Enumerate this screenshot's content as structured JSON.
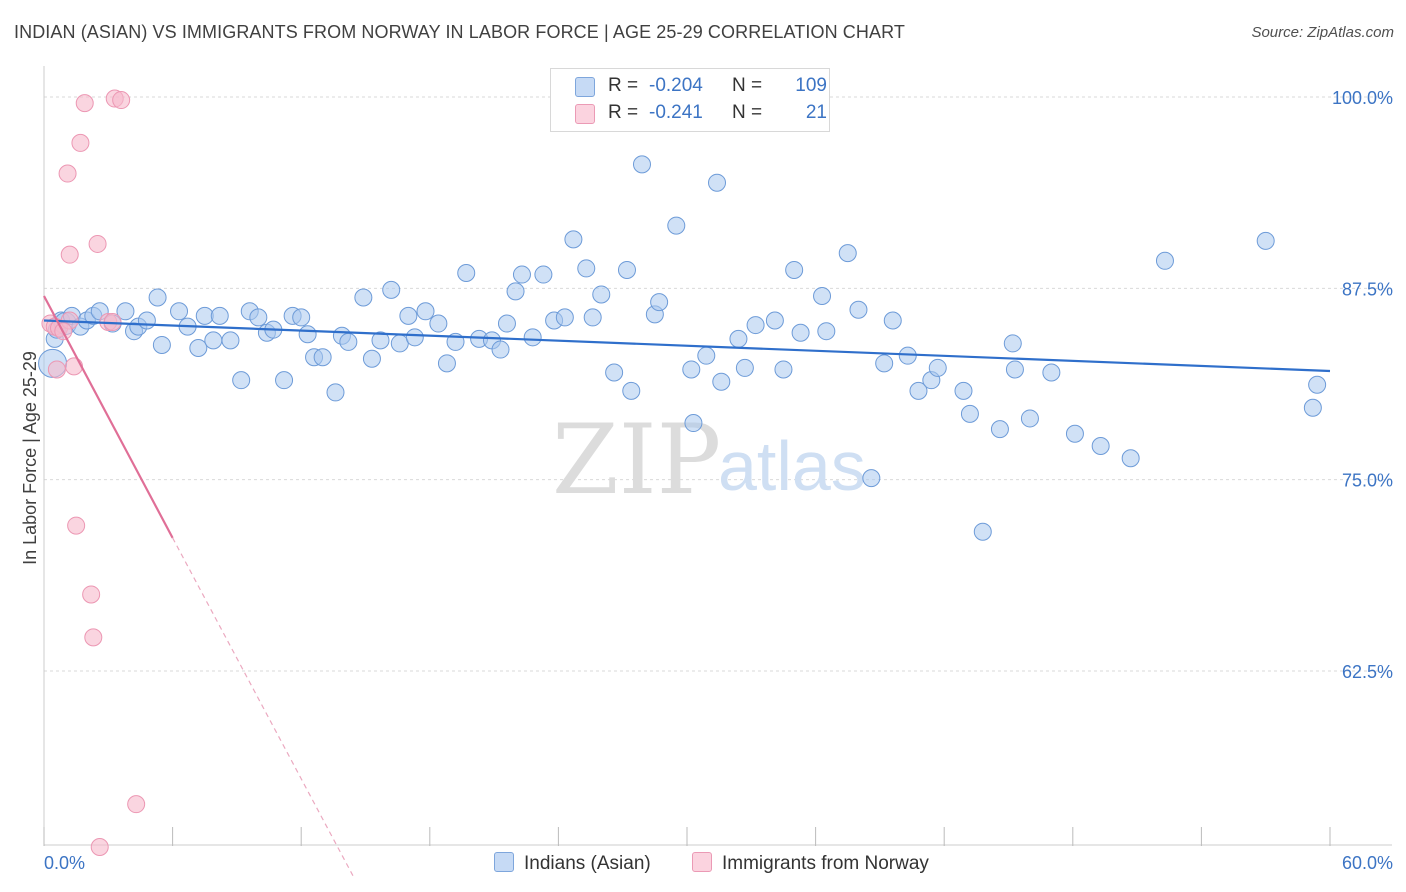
{
  "title": "INDIAN (ASIAN) VS IMMIGRANTS FROM NORWAY IN LABOR FORCE | AGE 25-29 CORRELATION CHART",
  "source": "Source: ZipAtlas.com",
  "watermark": {
    "zip": "ZIP",
    "atlas": "atlas"
  },
  "colors": {
    "blue": "#3c74c4",
    "blue_fill": "#a9c8ef",
    "blue_line": "#2f6fcb",
    "pink_fill": "#f7b9cc",
    "pink_line": "#e06f97",
    "grid": "#d9d9d9"
  },
  "legend": {
    "series": [
      {
        "r_label": "R =",
        "r_value": "-0.204",
        "n_label": "N =",
        "n_value": "109"
      },
      {
        "r_label": "R =",
        "r_value": "-0.241",
        "n_label": "N =",
        "n_value": "21"
      }
    ]
  },
  "bottom_legend": [
    "Indians (Asian)",
    "Immigrants from Norway"
  ],
  "chart_data": {
    "type": "scatter",
    "title": "INDIAN (ASIAN) VS IMMIGRANTS FROM NORWAY IN LABOR FORCE | AGE 25-29 CORRELATION CHART",
    "xlabel": "",
    "ylabel": "In Labor Force | Age 25-29",
    "xlim": [
      0,
      60
    ],
    "ylim": [
      50,
      101.5
    ],
    "x_tick_labels": [
      "0.0%",
      "60.0%"
    ],
    "y_ticks": [
      62.5,
      75.0,
      87.5,
      100.0
    ],
    "y_tick_labels": [
      "62.5%",
      "75.0%",
      "87.5%",
      "100.0%"
    ],
    "grid": true,
    "series": [
      {
        "name": "Indians (Asian)",
        "color": "#a9c8ef",
        "trend": {
          "x0": 0,
          "y0": 85.4,
          "x1": 60,
          "y1": 82.1
        },
        "points": [
          [
            0.4,
            82.6
          ],
          [
            0.5,
            84.2
          ],
          [
            0.6,
            84.8
          ],
          [
            0.8,
            85.4
          ],
          [
            1.0,
            85.2
          ],
          [
            1.3,
            85.7
          ],
          [
            1.7,
            85.0
          ],
          [
            2.0,
            85.4
          ],
          [
            2.3,
            85.7
          ],
          [
            2.6,
            86.0
          ],
          [
            3.2,
            85.2
          ],
          [
            3.8,
            86.0
          ],
          [
            4.2,
            84.7
          ],
          [
            4.4,
            85.0
          ],
          [
            4.8,
            85.4
          ],
          [
            5.3,
            86.9
          ],
          [
            5.5,
            83.8
          ],
          [
            6.3,
            86.0
          ],
          [
            6.7,
            85.0
          ],
          [
            7.2,
            83.6
          ],
          [
            7.5,
            85.7
          ],
          [
            7.9,
            84.1
          ],
          [
            8.2,
            85.7
          ],
          [
            8.7,
            84.1
          ],
          [
            9.2,
            81.5
          ],
          [
            9.6,
            86.0
          ],
          [
            10.0,
            85.6
          ],
          [
            10.4,
            84.6
          ],
          [
            10.7,
            84.8
          ],
          [
            11.2,
            81.5
          ],
          [
            11.6,
            85.7
          ],
          [
            12.0,
            85.6
          ],
          [
            12.3,
            84.5
          ],
          [
            12.6,
            83.0
          ],
          [
            13.0,
            83.0
          ],
          [
            13.6,
            80.7
          ],
          [
            13.9,
            84.4
          ],
          [
            14.2,
            84.0
          ],
          [
            14.9,
            86.9
          ],
          [
            15.3,
            82.9
          ],
          [
            15.7,
            84.1
          ],
          [
            16.2,
            87.4
          ],
          [
            16.6,
            83.9
          ],
          [
            17.0,
            85.7
          ],
          [
            17.3,
            84.3
          ],
          [
            17.8,
            86.0
          ],
          [
            18.4,
            85.2
          ],
          [
            18.8,
            82.6
          ],
          [
            19.2,
            84.0
          ],
          [
            19.7,
            88.5
          ],
          [
            20.3,
            84.2
          ],
          [
            20.9,
            84.1
          ],
          [
            21.3,
            83.5
          ],
          [
            21.6,
            85.2
          ],
          [
            22.0,
            87.3
          ],
          [
            22.3,
            88.4
          ],
          [
            22.8,
            84.3
          ],
          [
            23.3,
            88.4
          ],
          [
            23.8,
            85.4
          ],
          [
            24.3,
            85.6
          ],
          [
            24.7,
            90.7
          ],
          [
            25.3,
            88.8
          ],
          [
            25.6,
            85.6
          ],
          [
            26.0,
            87.1
          ],
          [
            26.6,
            82.0
          ],
          [
            27.2,
            88.7
          ],
          [
            27.4,
            80.8
          ],
          [
            27.9,
            95.6
          ],
          [
            28.5,
            85.8
          ],
          [
            28.7,
            86.6
          ],
          [
            29.5,
            91.6
          ],
          [
            30.2,
            82.2
          ],
          [
            30.3,
            78.7
          ],
          [
            30.9,
            83.1
          ],
          [
            31.4,
            94.4
          ],
          [
            31.6,
            81.4
          ],
          [
            32.4,
            84.2
          ],
          [
            32.7,
            82.3
          ],
          [
            33.2,
            85.1
          ],
          [
            34.1,
            85.4
          ],
          [
            34.5,
            82.2
          ],
          [
            35.0,
            88.7
          ],
          [
            35.3,
            84.6
          ],
          [
            36.3,
            87.0
          ],
          [
            36.5,
            84.7
          ],
          [
            37.5,
            89.8
          ],
          [
            38.0,
            86.1
          ],
          [
            38.6,
            75.1
          ],
          [
            39.2,
            82.6
          ],
          [
            39.6,
            85.4
          ],
          [
            40.3,
            83.1
          ],
          [
            40.8,
            80.8
          ],
          [
            41.4,
            81.5
          ],
          [
            41.7,
            82.3
          ],
          [
            42.9,
            80.8
          ],
          [
            43.2,
            79.3
          ],
          [
            43.8,
            71.6
          ],
          [
            44.6,
            78.3
          ],
          [
            45.2,
            83.9
          ],
          [
            45.3,
            82.2
          ],
          [
            46.0,
            79.0
          ],
          [
            47.0,
            82.0
          ],
          [
            48.1,
            78.0
          ],
          [
            49.3,
            77.2
          ],
          [
            50.7,
            76.4
          ],
          [
            52.3,
            89.3
          ],
          [
            57.0,
            90.6
          ],
          [
            59.2,
            79.7
          ],
          [
            59.4,
            81.2
          ]
        ]
      },
      {
        "name": "Immigrants from Norway",
        "color": "#f7b9cc",
        "trend": {
          "x0": 0,
          "y0": 87.0,
          "x1": 6.0,
          "y1": 71.2,
          "dash_to": {
            "x": 14.5,
            "y": 48.9
          }
        },
        "points": [
          [
            0.3,
            85.2
          ],
          [
            0.5,
            85.0
          ],
          [
            0.6,
            82.2
          ],
          [
            0.7,
            84.9
          ],
          [
            1.1,
            95.0
          ],
          [
            1.2,
            89.7
          ],
          [
            1.4,
            82.4
          ],
          [
            1.5,
            72.0
          ],
          [
            1.7,
            97.0
          ],
          [
            1.9,
            99.6
          ],
          [
            2.2,
            67.5
          ],
          [
            2.3,
            64.7
          ],
          [
            2.5,
            90.4
          ],
          [
            2.6,
            51.0
          ],
          [
            3.0,
            85.3
          ],
          [
            3.2,
            85.3
          ],
          [
            3.3,
            99.9
          ],
          [
            3.6,
            99.8
          ],
          [
            4.3,
            53.8
          ],
          [
            1.2,
            85.4
          ],
          [
            0.9,
            84.7
          ]
        ]
      }
    ]
  }
}
